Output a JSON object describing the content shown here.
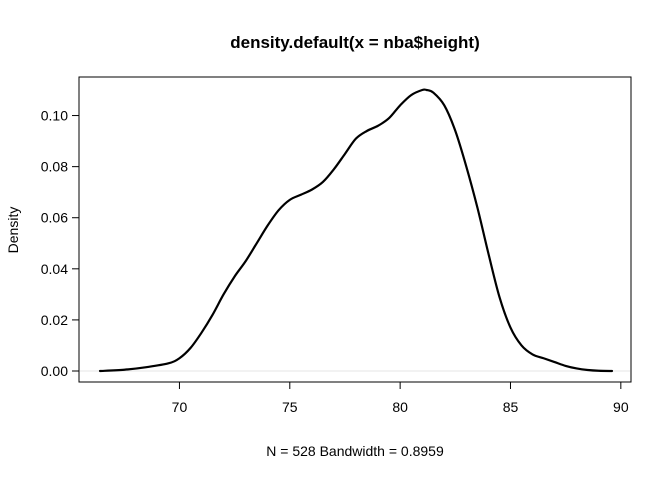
{
  "chart_data": {
    "type": "line",
    "title": "density.default(x = nba$height)",
    "xlabel": "N = 528   Bandwidth = 0.8959",
    "ylabel": "Density",
    "xlim": [
      66,
      90
    ],
    "ylim": [
      0,
      0.115
    ],
    "x_ticks": [
      {
        "value": 70,
        "label": "70"
      },
      {
        "value": 75,
        "label": "75"
      },
      {
        "value": 80,
        "label": "80"
      },
      {
        "value": 85,
        "label": "85"
      },
      {
        "value": 90,
        "label": "90"
      }
    ],
    "y_ticks": [
      {
        "value": 0.0,
        "label": "0.00"
      },
      {
        "value": 0.02,
        "label": "0.02"
      },
      {
        "value": 0.04,
        "label": "0.04"
      },
      {
        "value": 0.06,
        "label": "0.06"
      },
      {
        "value": 0.08,
        "label": "0.08"
      },
      {
        "value": 0.1,
        "label": "0.10"
      }
    ],
    "grid": false,
    "legend": "none",
    "series": [
      {
        "x": [
          66.4,
          67.5,
          68.5,
          69.5,
          70.0,
          70.5,
          71.0,
          71.5,
          72.0,
          72.5,
          73.0,
          73.5,
          74.0,
          74.5,
          75.0,
          75.5,
          76.0,
          76.5,
          77.0,
          77.5,
          78.0,
          78.5,
          79.0,
          79.5,
          80.0,
          80.5,
          81.0,
          81.2,
          81.5,
          82.0,
          82.5,
          83.0,
          83.5,
          84.0,
          84.5,
          85.0,
          85.5,
          86.0,
          86.5,
          87.0,
          87.5,
          88.0,
          88.5,
          89.0,
          89.6
        ],
        "y": [
          0.0,
          0.0005,
          0.0015,
          0.003,
          0.005,
          0.009,
          0.015,
          0.022,
          0.03,
          0.037,
          0.043,
          0.05,
          0.057,
          0.063,
          0.067,
          0.069,
          0.071,
          0.074,
          0.079,
          0.085,
          0.091,
          0.094,
          0.096,
          0.099,
          0.104,
          0.108,
          0.11,
          0.11,
          0.109,
          0.104,
          0.094,
          0.08,
          0.064,
          0.046,
          0.029,
          0.017,
          0.01,
          0.0065,
          0.005,
          0.0035,
          0.002,
          0.001,
          0.0004,
          0.0001,
          0.0
        ]
      }
    ]
  }
}
